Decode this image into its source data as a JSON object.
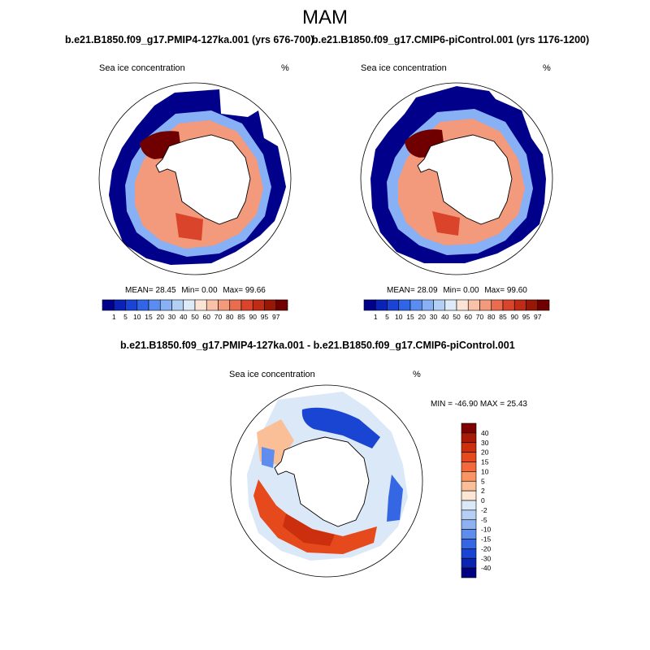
{
  "page": {
    "title": "MAM"
  },
  "chart_data": [
    {
      "type": "heatmap",
      "projection": "south polar stereographic",
      "title": "b.e21.B1850.f09_g17.PMIP4-127ka.001 (yrs 676-700)",
      "left_label": "Sea ice concentration",
      "right_label": "%",
      "stats": {
        "mean_label": "MEAN=",
        "mean": "28.45",
        "min_label": "Min=",
        "min": "0.00",
        "max_label": "Max=",
        "max": "99.66"
      },
      "colorbar": {
        "orientation": "horizontal",
        "levels": [
          "1",
          "5",
          "10",
          "15",
          "20",
          "30",
          "40",
          "50",
          "60",
          "70",
          "80",
          "85",
          "90",
          "95",
          "97"
        ],
        "colors": [
          "#00008b",
          "#0b22b8",
          "#1a44d6",
          "#2f66e8",
          "#5a8df2",
          "#88b0f5",
          "#b4cff4",
          "#ddeaf7",
          "#fbe4d6",
          "#f8c1a8",
          "#f39a7c",
          "#e86c4d",
          "#d9442a",
          "#c02b15",
          "#981808",
          "#700000"
        ]
      }
    },
    {
      "type": "heatmap",
      "projection": "south polar stereographic",
      "title": "b.e21.B1850.f09_g17.CMIP6-piControl.001 (yrs 1176-1200)",
      "left_label": "Sea ice concentration",
      "right_label": "%",
      "stats": {
        "mean_label": "MEAN=",
        "mean": "28.09",
        "min_label": "Min=",
        "min": "0.00",
        "max_label": "Max=",
        "max": "99.60"
      },
      "colorbar": {
        "orientation": "horizontal",
        "levels": [
          "1",
          "5",
          "10",
          "15",
          "20",
          "30",
          "40",
          "50",
          "60",
          "70",
          "80",
          "85",
          "90",
          "95",
          "97"
        ],
        "colors": [
          "#00008b",
          "#0b22b8",
          "#1a44d6",
          "#2f66e8",
          "#5a8df2",
          "#88b0f5",
          "#b4cff4",
          "#ddeaf7",
          "#fbe4d6",
          "#f8c1a8",
          "#f39a7c",
          "#e86c4d",
          "#d9442a",
          "#c02b15",
          "#981808",
          "#700000"
        ]
      }
    },
    {
      "type": "heatmap",
      "projection": "south polar stereographic",
      "title": "b.e21.B1850.f09_g17.PMIP4-127ka.001 - b.e21.B1850.f09_g17.CMIP6-piControl.001",
      "left_label": "Sea ice concentration",
      "right_label": "%",
      "stats": {
        "text": "MIN = -46.90 MAX =  25.43"
      },
      "colorbar": {
        "orientation": "vertical",
        "levels": [
          "40",
          "30",
          "20",
          "15",
          "10",
          "5",
          "2",
          "0",
          "-2",
          "-5",
          "-10",
          "-15",
          "-20",
          "-30",
          "-40"
        ],
        "colors": [
          "#7f0000",
          "#a91a06",
          "#cc2f0e",
          "#e64a1c",
          "#f4693a",
          "#f89563",
          "#fbbf98",
          "#fde6d3",
          "#dbe8f7",
          "#b6cff4",
          "#8db1f1",
          "#5e8ded",
          "#3567e5",
          "#1a45d2",
          "#0b25b0",
          "#000080"
        ]
      }
    }
  ]
}
